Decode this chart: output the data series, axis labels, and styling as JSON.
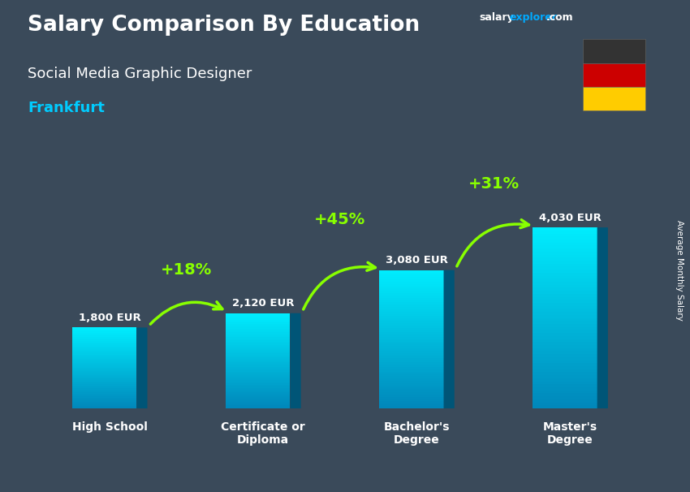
{
  "title": "Salary Comparison By Education",
  "subtitle": "Social Media Graphic Designer",
  "city": "Frankfurt",
  "ylabel": "Average Monthly Salary",
  "categories": [
    "High School",
    "Certificate or\nDiploma",
    "Bachelor's\nDegree",
    "Master's\nDegree"
  ],
  "values": [
    1800,
    2120,
    3080,
    4030
  ],
  "value_labels": [
    "1,800 EUR",
    "2,120 EUR",
    "3,080 EUR",
    "4,030 EUR"
  ],
  "pct_labels": [
    "+18%",
    "+45%",
    "+31%"
  ],
  "bar_face_top": "#00eeff",
  "bar_face_bottom": "#0088bb",
  "bar_side_color": "#005577",
  "bar_top_color": "#00ffff",
  "pct_label_color": "#88ff00",
  "title_color": "#ffffff",
  "subtitle_color": "#ffffff",
  "city_color": "#00ccff",
  "value_label_color": "#ffffff",
  "xlabel_color": "#ffffff",
  "ylabel_color": "#ffffff",
  "bg_color": "#3a4a5a",
  "flag_black": "#333333",
  "flag_red": "#cc0000",
  "flag_yellow": "#ffcc00",
  "salary_color": "#ffffff",
  "explorer_color": "#00aaff",
  "com_color": "#ffffff"
}
